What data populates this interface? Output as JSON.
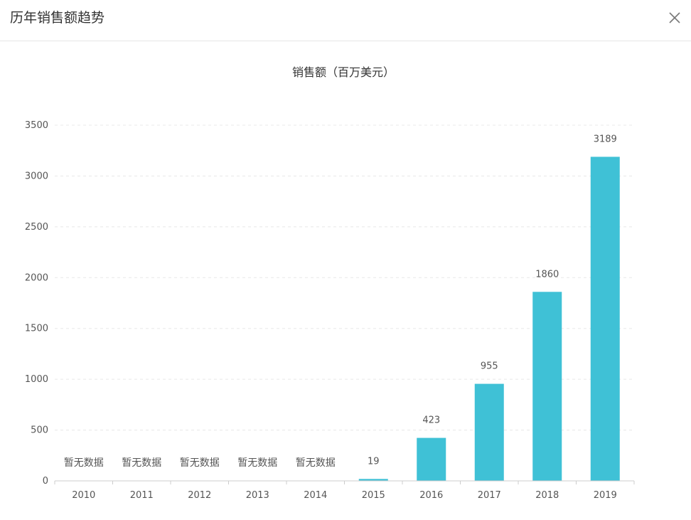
{
  "dialog": {
    "title": "历年销售额趋势"
  },
  "chart_data": {
    "type": "bar",
    "title": "销售额（百万美元）",
    "xlabel": "",
    "ylabel": "",
    "categories": [
      "2010",
      "2011",
      "2012",
      "2013",
      "2014",
      "2015",
      "2016",
      "2017",
      "2018",
      "2019"
    ],
    "values": [
      null,
      null,
      null,
      null,
      null,
      19,
      423,
      955,
      1860,
      3189
    ],
    "no_data_label": "暂无数据",
    "ylim": [
      0,
      3500
    ],
    "yticks": [
      0,
      500,
      1000,
      1500,
      2000,
      2500,
      3000,
      3500
    ],
    "grid": true,
    "bar_color": "#3fc1d6",
    "grid_color": "#e8e8e8",
    "axis_color": "#cccccc",
    "label_color": "#555555"
  }
}
